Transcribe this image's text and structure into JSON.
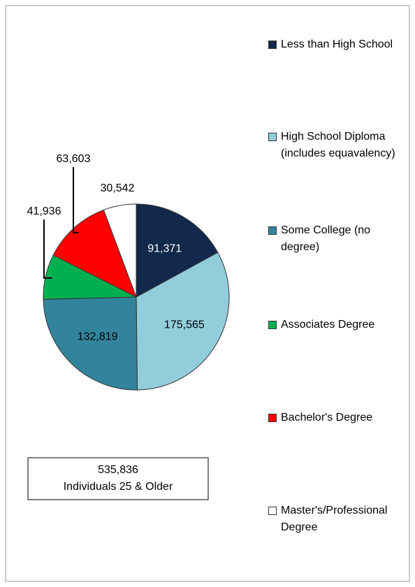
{
  "chart_data": {
    "type": "pie",
    "categories": [
      "Less than High School",
      "High School Diploma (includes equavalency)",
      "Some College (no degree)",
      "Associates Degree",
      "Bachelor's Degree",
      "Master's/Professional Degree"
    ],
    "values": [
      91371,
      175565,
      132819,
      41936,
      63603,
      30542
    ],
    "value_labels": [
      "91,371",
      "175,565",
      "132,819",
      "41,936",
      "63,603",
      "30,542"
    ],
    "colors": [
      "#13294b",
      "#92cddc",
      "#31849b",
      "#00b050",
      "#ff0000",
      "#ffffff"
    ],
    "annotation": [
      "535,836",
      "Individuals 25 & Older"
    ],
    "legend": "right"
  }
}
